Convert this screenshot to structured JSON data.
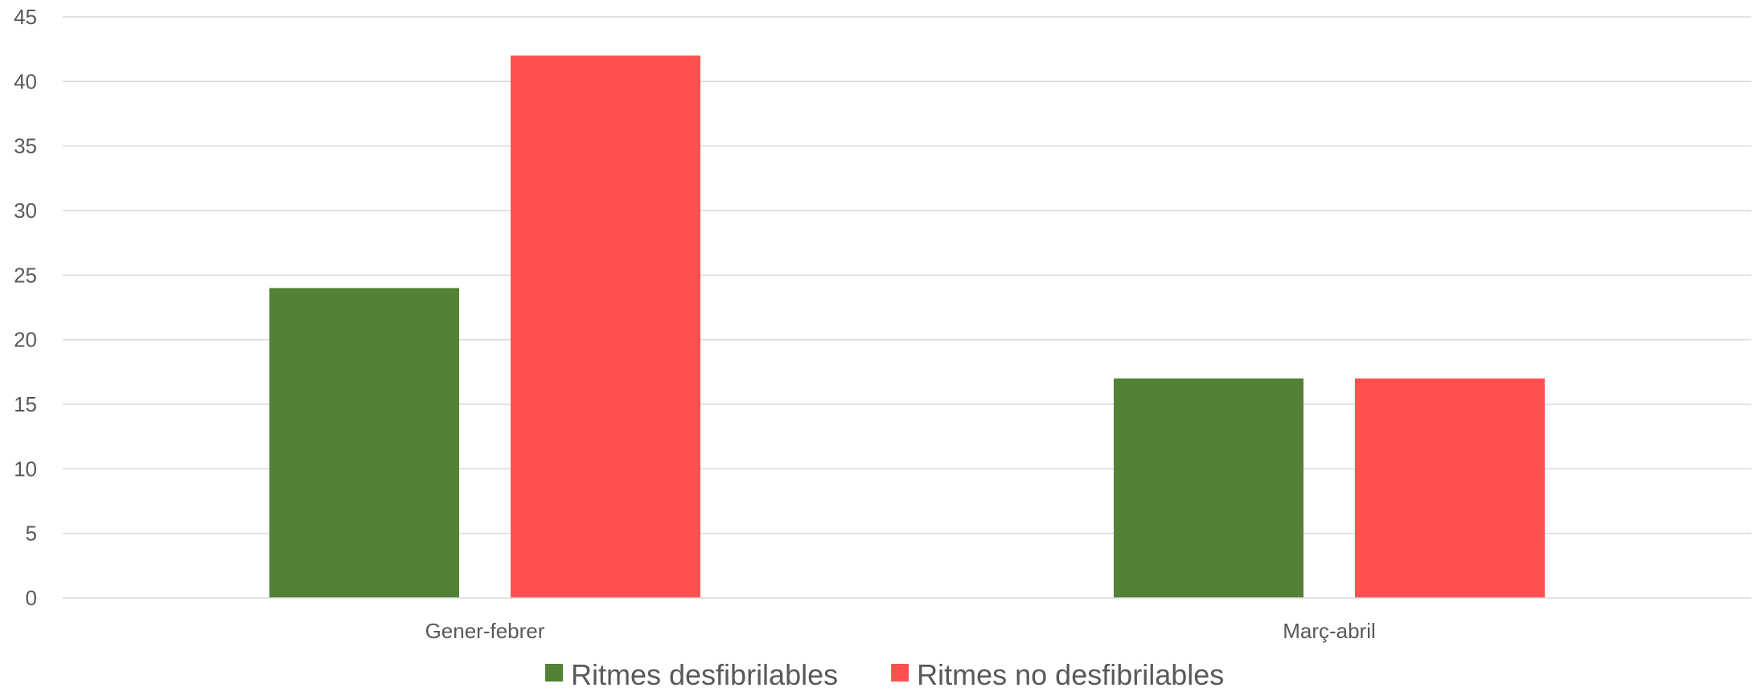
{
  "chart_data": {
    "type": "bar",
    "categories": [
      "Gener-febrer",
      "Març-abril"
    ],
    "series": [
      {
        "name": "Ritmes desfibrilables",
        "values": [
          24,
          17
        ],
        "color": "#538135"
      },
      {
        "name": "Ritmes no desfibrilables",
        "values": [
          42,
          17
        ],
        "color": "#FF5050"
      }
    ],
    "y_ticks": [
      "0",
      "5",
      "10",
      "15",
      "20",
      "25",
      "30",
      "35",
      "40",
      "45"
    ],
    "ylim": [
      0,
      45
    ],
    "grid": true,
    "legend_position": "bottom",
    "title": "",
    "xlabel": "",
    "ylabel": ""
  }
}
